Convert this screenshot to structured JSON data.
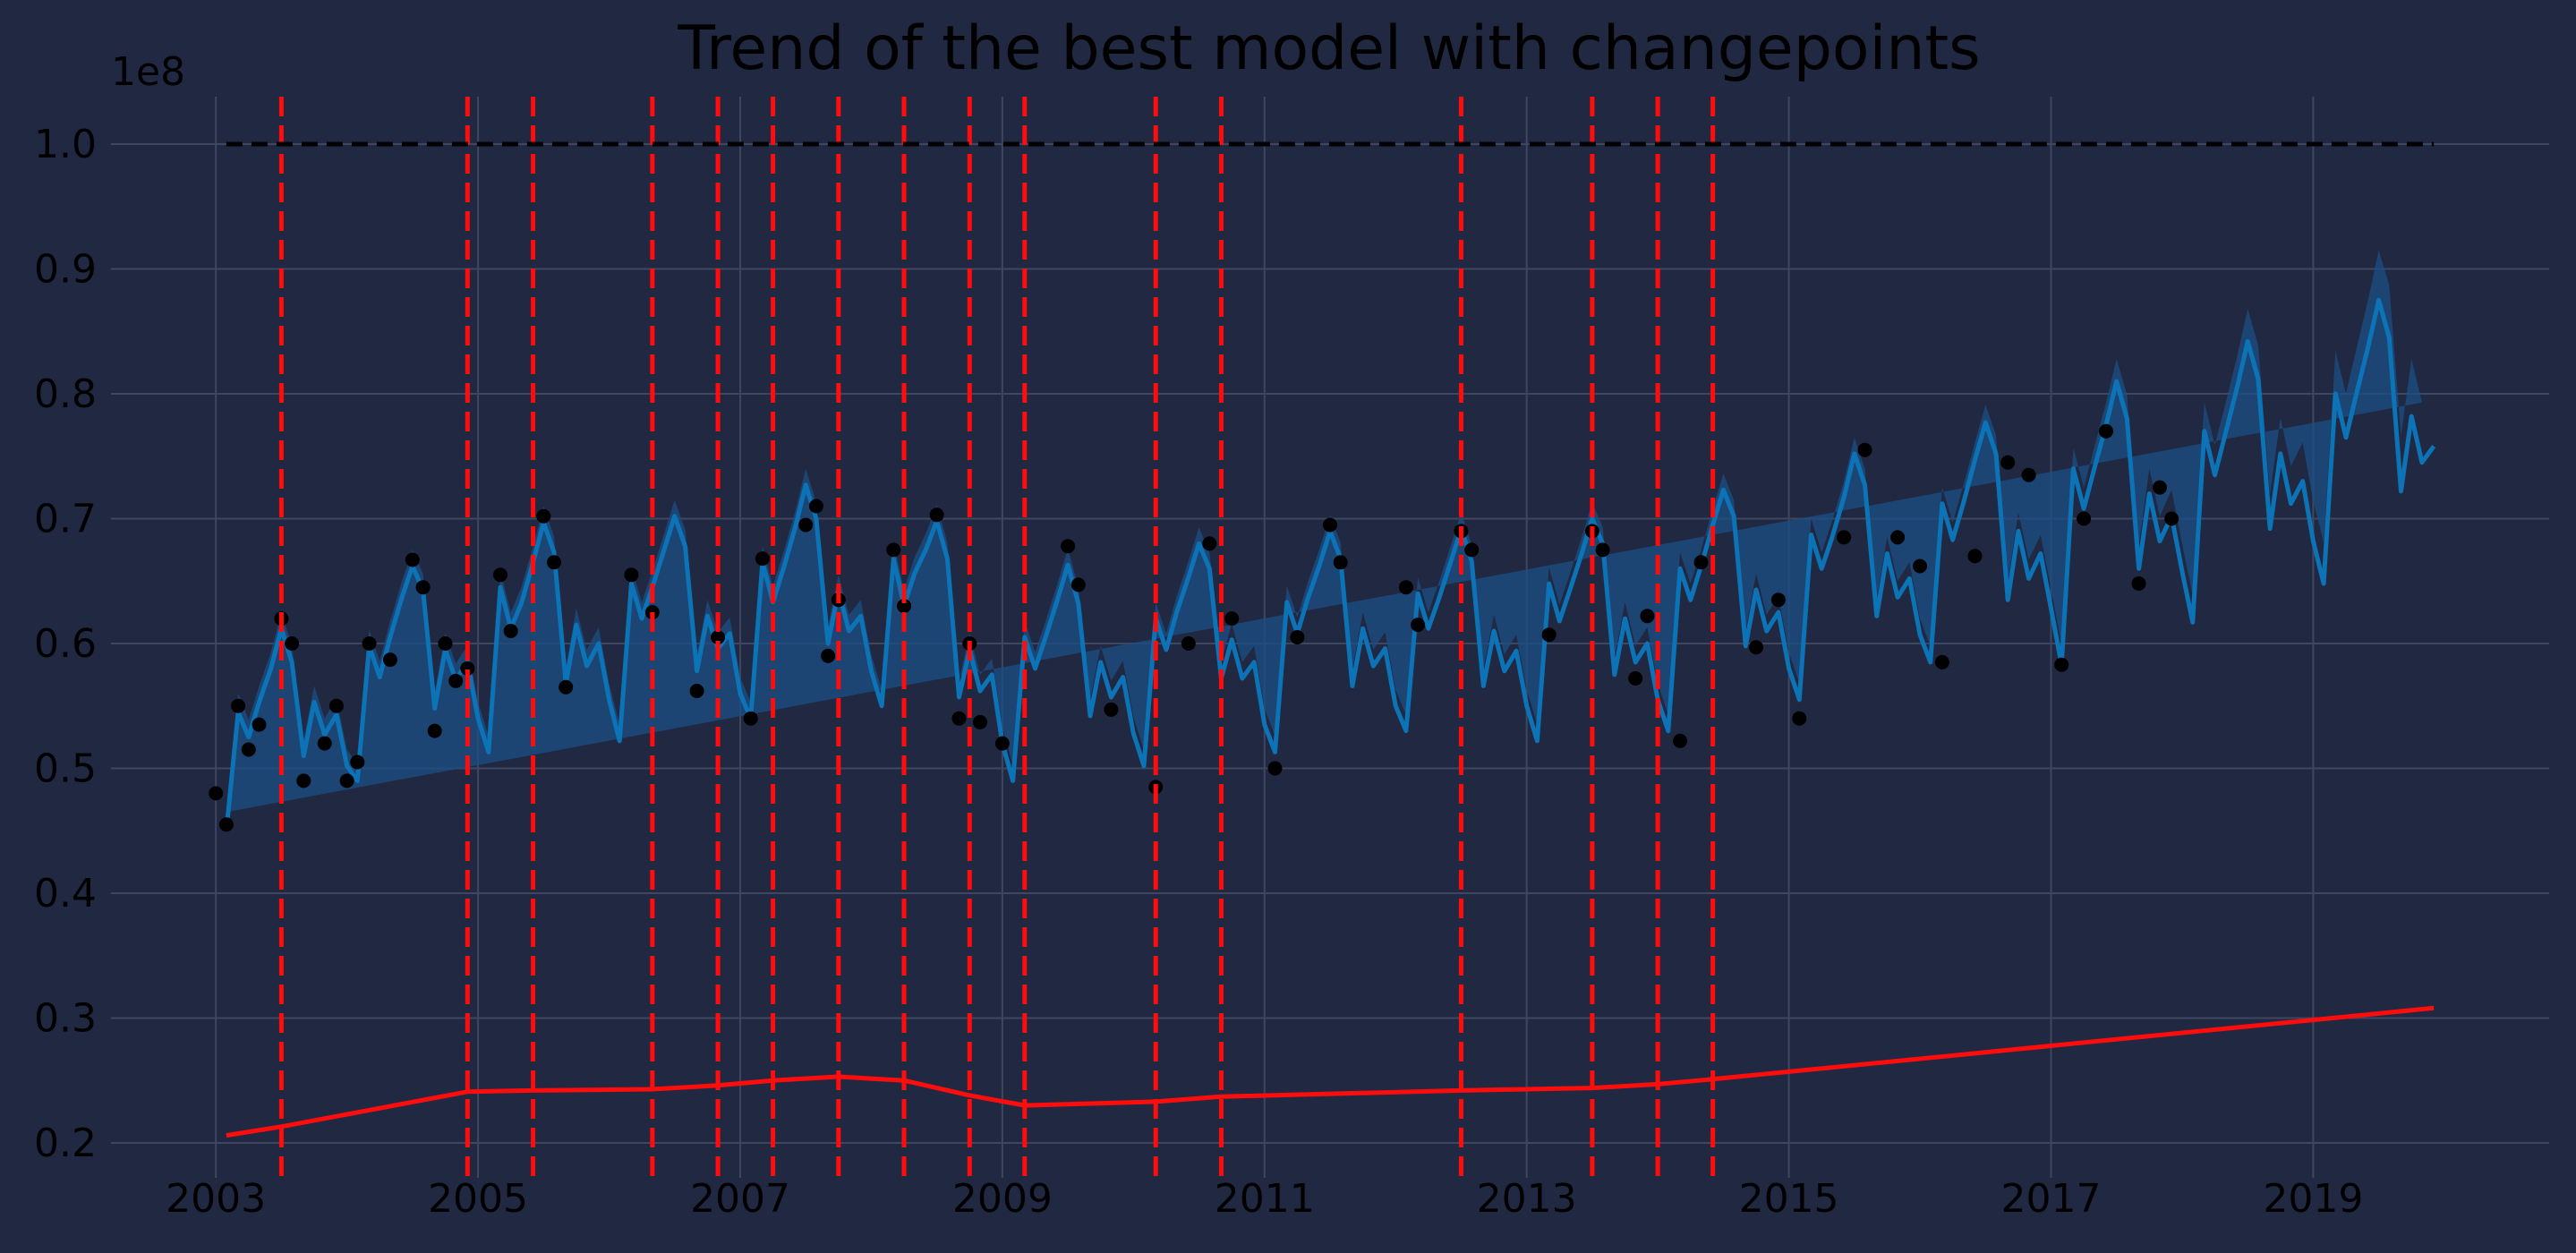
{
  "chart_data": {
    "type": "line",
    "title": "Trend of the best model with changepoints",
    "xlabel": "",
    "ylabel": "",
    "y_scale_label": "1e8",
    "xlim": [
      2002.2,
      2020.8
    ],
    "ylim": [
      0.172,
      1.038
    ],
    "x_ticks": [
      2003,
      2005,
      2007,
      2009,
      2011,
      2013,
      2015,
      2017,
      2019
    ],
    "x_tick_labels": [
      "2003",
      "2005",
      "2007",
      "2009",
      "2011",
      "2013",
      "2015",
      "2017",
      "2019"
    ],
    "y_ticks": [
      0.2,
      0.3,
      0.4,
      0.5,
      0.6,
      0.7,
      0.8,
      0.9,
      1.0
    ],
    "y_tick_labels": [
      "0.2",
      "0.3",
      "0.4",
      "0.5",
      "0.6",
      "0.7",
      "0.8",
      "0.9",
      "1.0"
    ],
    "grid": true,
    "legend": "none",
    "colors": {
      "background": "#212842",
      "grid": "#3f4660",
      "forecast": "#0c74b6",
      "band": "#1b4f86",
      "trend": "#ff0d0d",
      "changepoint": "#ff0d0d",
      "cap": "#000000",
      "observed": "#000000"
    },
    "cap": {
      "x_start": 2003.08,
      "x_end": 2019.92,
      "y": 1.0
    },
    "changepoints": [
      2003.5,
      2004.92,
      2005.42,
      2006.33,
      2006.83,
      2007.25,
      2007.75,
      2008.25,
      2008.75,
      2009.17,
      2010.17,
      2010.67,
      2012.5,
      2013.5,
      2014.0,
      2014.42
    ],
    "trend": {
      "x": [
        2003.08,
        2003.5,
        2004.92,
        2005.42,
        2006.33,
        2006.83,
        2007.25,
        2007.75,
        2008.25,
        2008.75,
        2009.17,
        2010.17,
        2010.67,
        2012.5,
        2013.5,
        2014.0,
        2014.42,
        2019.92
      ],
      "y": [
        0.206,
        0.213,
        0.241,
        0.242,
        0.243,
        0.246,
        0.25,
        0.253,
        0.25,
        0.238,
        0.23,
        0.233,
        0.237,
        0.242,
        0.244,
        0.247,
        0.251,
        0.308
      ]
    },
    "observed": {
      "x": [
        2003.0,
        2003.08,
        2003.17,
        2003.25,
        2003.33,
        2003.5,
        2003.58,
        2003.67,
        2003.83,
        2003.92,
        2004.0,
        2004.08,
        2004.17,
        2004.33,
        2004.5,
        2004.58,
        2004.67,
        2004.75,
        2004.83,
        2004.92,
        2005.17,
        2005.25,
        2005.5,
        2005.58,
        2005.67,
        2006.17,
        2006.33,
        2006.67,
        2006.83,
        2007.08,
        2007.17,
        2007.5,
        2007.58,
        2007.67,
        2007.75,
        2008.17,
        2008.25,
        2008.5,
        2008.67,
        2008.75,
        2008.83,
        2009.0,
        2009.5,
        2009.58,
        2009.83,
        2010.17,
        2010.42,
        2010.58,
        2010.75,
        2011.08,
        2011.25,
        2011.5,
        2011.58,
        2012.08,
        2012.17,
        2012.5,
        2012.58,
        2013.17,
        2013.5,
        2013.58,
        2013.83,
        2013.92,
        2014.17,
        2014.33,
        2014.75,
        2014.92,
        2015.08,
        2015.42,
        2015.58,
        2015.83,
        2016.0,
        2016.17,
        2016.42,
        2016.67,
        2016.83,
        2017.08,
        2017.25,
        2017.42,
        2017.67,
        2017.83,
        2017.92
      ],
      "y": [
        0.48,
        0.455,
        0.55,
        0.515,
        0.535,
        0.62,
        0.6,
        0.49,
        0.52,
        0.55,
        0.49,
        0.505,
        0.6,
        0.587,
        0.667,
        0.645,
        0.53,
        0.6,
        0.57,
        0.58,
        0.655,
        0.61,
        0.702,
        0.665,
        0.565,
        0.655,
        0.625,
        0.562,
        0.605,
        0.54,
        0.668,
        0.695,
        0.71,
        0.59,
        0.635,
        0.675,
        0.63,
        0.703,
        0.54,
        0.6,
        0.537,
        0.52,
        0.678,
        0.647,
        0.547,
        0.485,
        0.6,
        0.68,
        0.62,
        0.5,
        0.605,
        0.695,
        0.665,
        0.645,
        0.615,
        0.69,
        0.675,
        0.607,
        0.69,
        0.675,
        0.572,
        0.622,
        0.522,
        0.665,
        0.597,
        0.635,
        0.54,
        0.685,
        0.755,
        0.685,
        0.662,
        0.585,
        0.67,
        0.745,
        0.735,
        0.583,
        0.7,
        0.77,
        0.648,
        0.725,
        0.7
      ]
    },
    "forecast": {
      "x": [
        2003.08,
        2003.17,
        2003.25,
        2003.33,
        2003.42,
        2003.5,
        2003.58,
        2003.67,
        2003.75,
        2003.83,
        2003.92,
        2004.0,
        2004.08,
        2004.17,
        2004.25,
        2004.33,
        2004.42,
        2004.5,
        2004.58,
        2004.67,
        2004.75,
        2004.83,
        2004.92,
        2005.0,
        2005.08,
        2005.17,
        2005.25,
        2005.33,
        2005.42,
        2005.5,
        2005.58,
        2005.67,
        2005.75,
        2005.83,
        2005.92,
        2006.0,
        2006.08,
        2006.17,
        2006.25,
        2006.33,
        2006.42,
        2006.5,
        2006.58,
        2006.67,
        2006.75,
        2006.83,
        2006.92,
        2007.0,
        2007.08,
        2007.17,
        2007.25,
        2007.33,
        2007.42,
        2007.5,
        2007.58,
        2007.67,
        2007.75,
        2007.83,
        2007.92,
        2008.0,
        2008.08,
        2008.17,
        2008.25,
        2008.33,
        2008.42,
        2008.5,
        2008.58,
        2008.67,
        2008.75,
        2008.83,
        2008.92,
        2009.0,
        2009.08,
        2009.17,
        2009.25,
        2009.33,
        2009.42,
        2009.5,
        2009.58,
        2009.67,
        2009.75,
        2009.83,
        2009.92,
        2010.0,
        2010.08,
        2010.17,
        2010.25,
        2010.33,
        2010.42,
        2010.5,
        2010.58,
        2010.67,
        2010.75,
        2010.83,
        2010.92,
        2011.0,
        2011.08,
        2011.17,
        2011.25,
        2011.33,
        2011.42,
        2011.5,
        2011.58,
        2011.67,
        2011.75,
        2011.83,
        2011.92,
        2012.0,
        2012.08,
        2012.17,
        2012.25,
        2012.33,
        2012.42,
        2012.5,
        2012.58,
        2012.67,
        2012.75,
        2012.83,
        2012.92,
        2013.0,
        2013.08,
        2013.17,
        2013.25,
        2013.33,
        2013.42,
        2013.5,
        2013.58,
        2013.67,
        2013.75,
        2013.83,
        2013.92,
        2014.0,
        2014.08,
        2014.17,
        2014.25,
        2014.33,
        2014.42,
        2014.5,
        2014.58,
        2014.67,
        2014.75,
        2014.83,
        2014.92,
        2015.0,
        2015.08,
        2015.17,
        2015.25,
        2015.33,
        2015.42,
        2015.5,
        2015.58,
        2015.67,
        2015.75,
        2015.83,
        2015.92,
        2016.0,
        2016.08,
        2016.17,
        2016.25,
        2016.33,
        2016.42,
        2016.5,
        2016.58,
        2016.67,
        2016.75,
        2016.83,
        2016.92,
        2017.0,
        2017.08,
        2017.17,
        2017.25,
        2017.33,
        2017.42,
        2017.5,
        2017.58,
        2017.67,
        2017.75,
        2017.83,
        2017.92,
        2018.0,
        2018.08,
        2018.17,
        2018.25,
        2018.33,
        2018.42,
        2018.5,
        2018.58,
        2018.67,
        2018.75,
        2018.83,
        2018.92,
        2019.0,
        2019.08,
        2019.17,
        2019.25,
        2019.33,
        2019.42,
        2019.5,
        2019.58,
        2019.67,
        2019.75,
        2019.83,
        2019.92
      ],
      "y": [
        0.45,
        0.545,
        0.525,
        0.553,
        0.58,
        0.612,
        0.585,
        0.51,
        0.553,
        0.527,
        0.543,
        0.502,
        0.49,
        0.598,
        0.573,
        0.605,
        0.637,
        0.662,
        0.643,
        0.548,
        0.595,
        0.571,
        0.585,
        0.54,
        0.513,
        0.645,
        0.612,
        0.632,
        0.665,
        0.697,
        0.673,
        0.568,
        0.615,
        0.582,
        0.6,
        0.555,
        0.522,
        0.648,
        0.62,
        0.645,
        0.675,
        0.702,
        0.678,
        0.578,
        0.622,
        0.596,
        0.608,
        0.56,
        0.54,
        0.665,
        0.633,
        0.66,
        0.693,
        0.727,
        0.7,
        0.6,
        0.642,
        0.61,
        0.622,
        0.578,
        0.55,
        0.668,
        0.63,
        0.656,
        0.676,
        0.698,
        0.668,
        0.557,
        0.595,
        0.562,
        0.575,
        0.52,
        0.49,
        0.605,
        0.58,
        0.605,
        0.635,
        0.663,
        0.632,
        0.542,
        0.585,
        0.557,
        0.573,
        0.528,
        0.502,
        0.62,
        0.595,
        0.625,
        0.653,
        0.68,
        0.66,
        0.572,
        0.603,
        0.572,
        0.585,
        0.535,
        0.513,
        0.633,
        0.608,
        0.636,
        0.663,
        0.69,
        0.668,
        0.566,
        0.612,
        0.582,
        0.596,
        0.55,
        0.53,
        0.64,
        0.612,
        0.636,
        0.665,
        0.692,
        0.666,
        0.566,
        0.61,
        0.578,
        0.594,
        0.55,
        0.522,
        0.648,
        0.618,
        0.643,
        0.672,
        0.7,
        0.68,
        0.575,
        0.62,
        0.585,
        0.6,
        0.555,
        0.53,
        0.66,
        0.635,
        0.662,
        0.695,
        0.723,
        0.702,
        0.598,
        0.643,
        0.61,
        0.625,
        0.58,
        0.555,
        0.687,
        0.66,
        0.685,
        0.717,
        0.752,
        0.727,
        0.622,
        0.672,
        0.637,
        0.652,
        0.607,
        0.585,
        0.712,
        0.683,
        0.712,
        0.747,
        0.777,
        0.752,
        0.635,
        0.69,
        0.652,
        0.672,
        0.628,
        0.583,
        0.74,
        0.708,
        0.74,
        0.775,
        0.81,
        0.78,
        0.66,
        0.72,
        0.682,
        0.702,
        0.658,
        0.617,
        0.77,
        0.735,
        0.768,
        0.805,
        0.842,
        0.812,
        0.692,
        0.752,
        0.712,
        0.73,
        0.682,
        0.648,
        0.8,
        0.765,
        0.8,
        0.838,
        0.875,
        0.845,
        0.722,
        0.782,
        0.745,
        0.758
      ],
      "band_width": [
        0.015,
        0.015,
        0.014,
        0.013,
        0.013,
        0.013,
        0.013,
        0.013,
        0.013,
        0.013,
        0.013,
        0.013,
        0.013,
        0.013,
        0.013,
        0.013,
        0.013,
        0.013,
        0.013,
        0.013,
        0.013,
        0.013,
        0.013,
        0.013,
        0.013,
        0.013,
        0.013,
        0.013,
        0.013,
        0.013,
        0.013,
        0.013,
        0.013,
        0.013,
        0.013,
        0.013,
        0.013,
        0.013,
        0.013,
        0.013,
        0.013,
        0.013,
        0.013,
        0.013,
        0.013,
        0.013,
        0.013,
        0.013,
        0.013,
        0.013,
        0.013,
        0.013,
        0.013,
        0.013,
        0.013,
        0.013,
        0.013,
        0.013,
        0.013,
        0.013,
        0.013,
        0.013,
        0.013,
        0.013,
        0.013,
        0.013,
        0.013,
        0.013,
        0.013,
        0.013,
        0.013,
        0.013,
        0.013,
        0.013,
        0.013,
        0.013,
        0.013,
        0.013,
        0.013,
        0.013,
        0.013,
        0.013,
        0.013,
        0.013,
        0.013,
        0.013,
        0.013,
        0.013,
        0.013,
        0.013,
        0.013,
        0.013,
        0.013,
        0.013,
        0.013,
        0.013,
        0.013,
        0.013,
        0.013,
        0.013,
        0.013,
        0.013,
        0.013,
        0.013,
        0.013,
        0.013,
        0.013,
        0.013,
        0.013,
        0.013,
        0.013,
        0.013,
        0.013,
        0.013,
        0.013,
        0.013,
        0.013,
        0.013,
        0.013,
        0.013,
        0.013,
        0.013,
        0.013,
        0.013,
        0.013,
        0.013,
        0.013,
        0.013,
        0.013,
        0.013,
        0.013,
        0.013,
        0.013,
        0.013,
        0.013,
        0.013,
        0.013,
        0.013,
        0.013,
        0.013,
        0.013,
        0.013,
        0.013,
        0.013,
        0.013,
        0.013,
        0.013,
        0.013,
        0.013,
        0.013,
        0.013,
        0.013,
        0.013,
        0.013,
        0.013,
        0.013,
        0.013,
        0.013,
        0.014,
        0.014,
        0.014,
        0.014,
        0.015,
        0.015,
        0.015,
        0.015,
        0.015,
        0.016,
        0.016,
        0.017,
        0.017,
        0.017,
        0.018,
        0.018,
        0.019,
        0.019,
        0.02,
        0.02,
        0.021,
        0.022,
        0.022,
        0.023,
        0.024,
        0.024,
        0.025,
        0.026,
        0.027,
        0.028,
        0.029,
        0.03,
        0.031,
        0.032,
        0.033,
        0.034,
        0.035,
        0.036,
        0.038,
        0.04,
        0.042,
        0.044,
        0.046,
        0.048
      ]
    }
  }
}
